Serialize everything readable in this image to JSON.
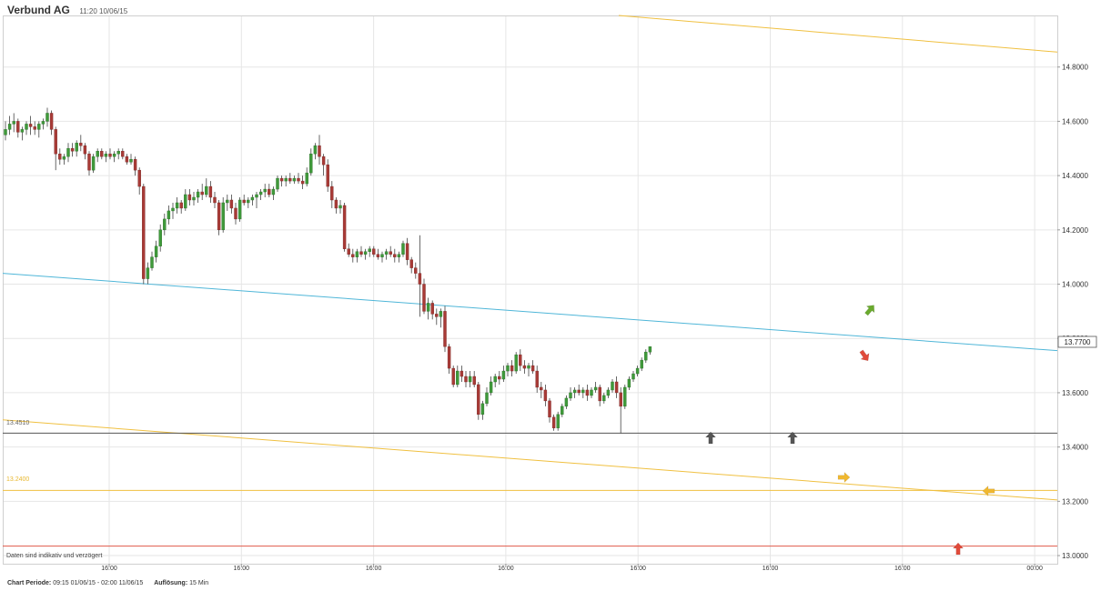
{
  "header": {
    "title": "Verbund AG",
    "timestamp": "11:20 10/06/15"
  },
  "footer": {
    "period_label": "Chart Periode:",
    "period_value": "09:15 01/06/15 - 02:00 11/06/15",
    "resolution_label": "Auflösung:",
    "resolution_value": "15 Min"
  },
  "chart_data": {
    "type": "candlestick",
    "title": "Verbund AG",
    "ylim": [
      12.97,
      14.99
    ],
    "y_ticks": [
      "14.8000",
      "14.6000",
      "14.4000",
      "14.2000",
      "14.0000",
      "13.8000",
      "13.6000",
      "13.4000",
      "13.2000",
      "13.0000"
    ],
    "x_ticks": [
      "16:00",
      "16:00",
      "16:00",
      "16:00",
      "16:00",
      "16:00",
      "16:00",
      "00:00"
    ],
    "current_price": "13.7700",
    "note": "Daten sind indikativ und verzögert",
    "candle_spacing": 4.6,
    "candles": [
      [
        14.55,
        14.6,
        14.53,
        14.57
      ],
      [
        14.57,
        14.62,
        14.55,
        14.59
      ],
      [
        14.59,
        14.63,
        14.56,
        14.6
      ],
      [
        14.6,
        14.61,
        14.54,
        14.56
      ],
      [
        14.56,
        14.58,
        14.53,
        14.57
      ],
      [
        14.57,
        14.6,
        14.55,
        14.59
      ],
      [
        14.59,
        14.62,
        14.55,
        14.58
      ],
      [
        14.58,
        14.6,
        14.55,
        14.57
      ],
      [
        14.57,
        14.6,
        14.54,
        14.59
      ],
      [
        14.59,
        14.61,
        14.57,
        14.6
      ],
      [
        14.6,
        14.65,
        14.58,
        14.63
      ],
      [
        14.63,
        14.64,
        14.55,
        14.57
      ],
      [
        14.57,
        14.58,
        14.42,
        14.48
      ],
      [
        14.48,
        14.5,
        14.44,
        14.46
      ],
      [
        14.46,
        14.48,
        14.44,
        14.47
      ],
      [
        14.47,
        14.52,
        14.45,
        14.5
      ],
      [
        14.5,
        14.52,
        14.47,
        14.49
      ],
      [
        14.49,
        14.53,
        14.47,
        14.52
      ],
      [
        14.52,
        14.55,
        14.49,
        14.51
      ],
      [
        14.51,
        14.52,
        14.46,
        14.48
      ],
      [
        14.48,
        14.49,
        14.4,
        14.42
      ],
      [
        14.42,
        14.48,
        14.41,
        14.47
      ],
      [
        14.47,
        14.5,
        14.45,
        14.49
      ],
      [
        14.49,
        14.5,
        14.46,
        14.47
      ],
      [
        14.47,
        14.49,
        14.45,
        14.48
      ],
      [
        14.48,
        14.5,
        14.46,
        14.47
      ],
      [
        14.47,
        14.49,
        14.45,
        14.48
      ],
      [
        14.48,
        14.5,
        14.46,
        14.49
      ],
      [
        14.49,
        14.5,
        14.46,
        14.47
      ],
      [
        14.47,
        14.48,
        14.44,
        14.45
      ],
      [
        14.45,
        14.48,
        14.44,
        14.46
      ],
      [
        14.46,
        14.47,
        14.4,
        14.42
      ],
      [
        14.42,
        14.43,
        14.33,
        14.36
      ],
      [
        14.36,
        14.37,
        14.0,
        14.02
      ],
      [
        14.02,
        14.08,
        14.0,
        14.06
      ],
      [
        14.06,
        14.12,
        14.05,
        14.1
      ],
      [
        14.1,
        14.16,
        14.08,
        14.14
      ],
      [
        14.14,
        14.22,
        14.12,
        14.2
      ],
      [
        14.2,
        14.26,
        14.18,
        14.24
      ],
      [
        14.24,
        14.29,
        14.22,
        14.27
      ],
      [
        14.27,
        14.3,
        14.24,
        14.28
      ],
      [
        14.28,
        14.32,
        14.26,
        14.3
      ],
      [
        14.3,
        14.31,
        14.26,
        14.28
      ],
      [
        14.28,
        14.35,
        14.27,
        14.33
      ],
      [
        14.33,
        14.35,
        14.29,
        14.31
      ],
      [
        14.31,
        14.34,
        14.29,
        14.32
      ],
      [
        14.32,
        14.35,
        14.3,
        14.34
      ],
      [
        14.34,
        14.37,
        14.31,
        14.33
      ],
      [
        14.33,
        14.39,
        14.32,
        14.36
      ],
      [
        14.36,
        14.38,
        14.3,
        14.32
      ],
      [
        14.32,
        14.34,
        14.28,
        14.3
      ],
      [
        14.3,
        14.31,
        14.18,
        14.2
      ],
      [
        14.2,
        14.32,
        14.19,
        14.3
      ],
      [
        14.3,
        14.33,
        14.27,
        14.31
      ],
      [
        14.31,
        14.33,
        14.26,
        14.28
      ],
      [
        14.28,
        14.3,
        14.22,
        14.24
      ],
      [
        14.24,
        14.32,
        14.23,
        14.31
      ],
      [
        14.31,
        14.33,
        14.29,
        14.3
      ],
      [
        14.3,
        14.32,
        14.28,
        14.31
      ],
      [
        14.31,
        14.33,
        14.29,
        14.32
      ],
      [
        14.32,
        14.34,
        14.28,
        14.33
      ],
      [
        14.33,
        14.35,
        14.31,
        14.34
      ],
      [
        14.34,
        14.37,
        14.32,
        14.35
      ],
      [
        14.35,
        14.37,
        14.32,
        14.33
      ],
      [
        14.33,
        14.36,
        14.31,
        14.35
      ],
      [
        14.35,
        14.4,
        14.34,
        14.39
      ],
      [
        14.39,
        14.4,
        14.36,
        14.38
      ],
      [
        14.38,
        14.4,
        14.36,
        14.39
      ],
      [
        14.39,
        14.41,
        14.37,
        14.38
      ],
      [
        14.38,
        14.4,
        14.37,
        14.39
      ],
      [
        14.39,
        14.41,
        14.37,
        14.38
      ],
      [
        14.38,
        14.4,
        14.35,
        14.37
      ],
      [
        14.37,
        14.43,
        14.36,
        14.41
      ],
      [
        14.41,
        14.5,
        14.4,
        14.48
      ],
      [
        14.48,
        14.52,
        14.46,
        14.51
      ],
      [
        14.51,
        14.55,
        14.44,
        14.47
      ],
      [
        14.47,
        14.48,
        14.4,
        14.44
      ],
      [
        14.44,
        14.46,
        14.34,
        14.36
      ],
      [
        14.36,
        14.38,
        14.28,
        14.31
      ],
      [
        14.31,
        14.32,
        14.26,
        14.28
      ],
      [
        14.28,
        14.31,
        14.26,
        14.29
      ],
      [
        14.29,
        14.3,
        14.12,
        14.13
      ],
      [
        14.13,
        14.15,
        14.1,
        14.11
      ],
      [
        14.11,
        14.13,
        14.08,
        14.1
      ],
      [
        14.1,
        14.13,
        14.08,
        14.12
      ],
      [
        14.12,
        14.14,
        14.1,
        14.11
      ],
      [
        14.11,
        14.13,
        14.09,
        14.12
      ],
      [
        14.12,
        14.14,
        14.1,
        14.13
      ],
      [
        14.13,
        14.14,
        14.1,
        14.11
      ],
      [
        14.11,
        14.13,
        14.09,
        14.1
      ],
      [
        14.1,
        14.12,
        14.08,
        14.11
      ],
      [
        14.11,
        14.13,
        14.09,
        14.12
      ],
      [
        14.12,
        14.14,
        14.1,
        14.11
      ],
      [
        14.11,
        14.13,
        14.08,
        14.1
      ],
      [
        14.1,
        14.12,
        14.08,
        14.11
      ],
      [
        14.11,
        14.16,
        14.1,
        14.15
      ],
      [
        14.15,
        14.17,
        14.07,
        14.09
      ],
      [
        14.09,
        14.1,
        14.04,
        14.06
      ],
      [
        14.06,
        14.08,
        14.02,
        14.04
      ],
      [
        14.04,
        14.18,
        13.88,
        14.0
      ],
      [
        14.0,
        14.02,
        13.89,
        13.9
      ],
      [
        13.9,
        13.95,
        13.87,
        13.93
      ],
      [
        13.93,
        13.94,
        13.87,
        13.89
      ],
      [
        13.89,
        13.91,
        13.85,
        13.88
      ],
      [
        13.88,
        13.91,
        13.84,
        13.9
      ],
      [
        13.9,
        13.92,
        13.75,
        13.77
      ],
      [
        13.77,
        13.78,
        13.67,
        13.69
      ],
      [
        13.69,
        13.7,
        13.62,
        13.63
      ],
      [
        13.63,
        13.7,
        13.62,
        13.68
      ],
      [
        13.68,
        13.7,
        13.64,
        13.66
      ],
      [
        13.66,
        13.68,
        13.62,
        13.64
      ],
      [
        13.64,
        13.68,
        13.62,
        13.66
      ],
      [
        13.66,
        13.68,
        13.62,
        13.63
      ],
      [
        13.63,
        13.64,
        13.5,
        13.52
      ],
      [
        13.52,
        13.57,
        13.5,
        13.56
      ],
      [
        13.56,
        13.62,
        13.55,
        13.6
      ],
      [
        13.6,
        13.66,
        13.59,
        13.64
      ],
      [
        13.64,
        13.67,
        13.62,
        13.66
      ],
      [
        13.66,
        13.68,
        13.63,
        13.65
      ],
      [
        13.65,
        13.7,
        13.64,
        13.68
      ],
      [
        13.68,
        13.71,
        13.66,
        13.7
      ],
      [
        13.7,
        13.72,
        13.66,
        13.68
      ],
      [
        13.68,
        13.75,
        13.67,
        13.74
      ],
      [
        13.74,
        13.76,
        13.68,
        13.7
      ],
      [
        13.7,
        13.72,
        13.67,
        13.69
      ],
      [
        13.69,
        13.71,
        13.66,
        13.7
      ],
      [
        13.7,
        13.72,
        13.67,
        13.68
      ],
      [
        13.68,
        13.7,
        13.6,
        13.62
      ],
      [
        13.62,
        13.64,
        13.58,
        13.61
      ],
      [
        13.61,
        13.63,
        13.55,
        13.57
      ],
      [
        13.57,
        13.58,
        13.49,
        13.51
      ],
      [
        13.51,
        13.52,
        13.46,
        13.47
      ],
      [
        13.47,
        13.53,
        13.46,
        13.52
      ],
      [
        13.52,
        13.56,
        13.51,
        13.55
      ],
      [
        13.55,
        13.59,
        13.54,
        13.58
      ],
      [
        13.58,
        13.62,
        13.57,
        13.6
      ],
      [
        13.6,
        13.62,
        13.58,
        13.61
      ],
      [
        13.61,
        13.63,
        13.59,
        13.6
      ],
      [
        13.6,
        13.62,
        13.58,
        13.61
      ],
      [
        13.61,
        13.63,
        13.57,
        13.59
      ],
      [
        13.59,
        13.62,
        13.58,
        13.61
      ],
      [
        13.61,
        13.64,
        13.6,
        13.62
      ],
      [
        13.62,
        13.63,
        13.55,
        13.57
      ],
      [
        13.57,
        13.6,
        13.56,
        13.59
      ],
      [
        13.59,
        13.62,
        13.58,
        13.61
      ],
      [
        13.61,
        13.65,
        13.6,
        13.64
      ],
      [
        13.64,
        13.66,
        13.58,
        13.6
      ],
      [
        13.6,
        13.62,
        13.45,
        13.55
      ],
      [
        13.55,
        13.63,
        13.54,
        13.62
      ],
      [
        13.62,
        13.66,
        13.61,
        13.65
      ],
      [
        13.65,
        13.68,
        13.64,
        13.67
      ],
      [
        13.67,
        13.7,
        13.66,
        13.69
      ],
      [
        13.69,
        13.73,
        13.68,
        13.72
      ],
      [
        13.72,
        13.76,
        13.71,
        13.75
      ],
      [
        13.75,
        13.77,
        13.74,
        13.77
      ]
    ],
    "colors": {
      "up": "#3f9a3a",
      "down": "#a83a36",
      "wick": "#444444",
      "blue_trend": "#4fb6d8",
      "orange_trend": "#f0c040",
      "support": "#555555",
      "red_level": "#e05a4a",
      "grid": "#e6e6e6"
    },
    "levels": {
      "support_label": "13.4510",
      "support_value": 13.451,
      "orange_label": "13.2400",
      "orange_value": 13.24,
      "red_value": 13.035
    }
  }
}
